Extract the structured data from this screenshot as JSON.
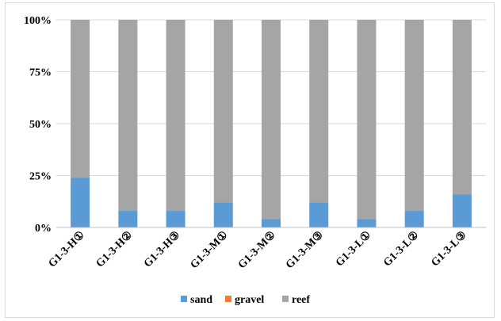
{
  "chart_data": {
    "type": "bar",
    "stacked": "percent",
    "categories": [
      "G1-3-H①",
      "G1-3-H②",
      "G1-3-H③",
      "G1-3-M①",
      "G1-3-M②",
      "G1-3-M③",
      "G1-3-L①",
      "G1-3-L②",
      "G1-3-L③"
    ],
    "series": [
      {
        "name": "sand",
        "color": "#5b9bd5",
        "values": [
          24,
          8,
          8,
          12,
          4,
          12,
          4,
          8,
          16
        ]
      },
      {
        "name": "gravel",
        "color": "#ed7d31",
        "values": [
          0,
          0,
          0,
          0,
          0,
          0,
          0,
          0,
          0
        ]
      },
      {
        "name": "reef",
        "color": "#a5a5a5",
        "values": [
          76,
          92,
          92,
          88,
          96,
          88,
          96,
          92,
          84
        ]
      }
    ],
    "yticks": [
      "0%",
      "25%",
      "50%",
      "75%",
      "100%"
    ],
    "ylim": [
      0,
      100
    ],
    "grid": true,
    "legend": "bottom"
  }
}
